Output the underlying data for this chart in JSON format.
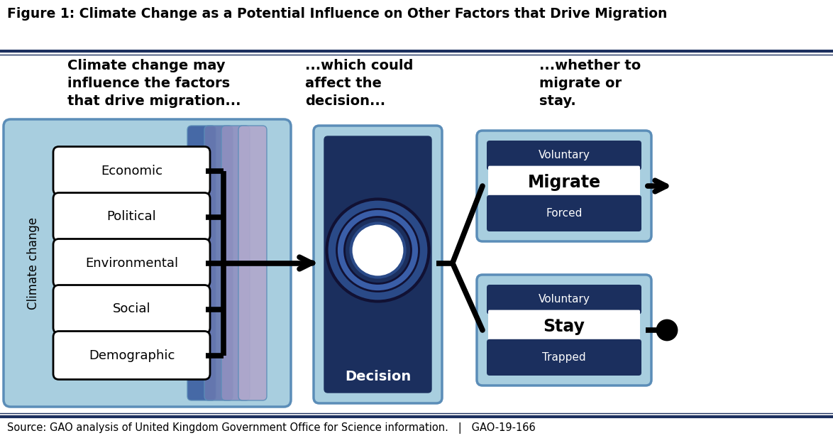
{
  "title": "Figure 1: Climate Change as a Potential Influence on Other Factors that Drive Migration",
  "source": "Source: GAO analysis of United Kingdom Government Office for Science information.   |   GAO-19-166",
  "col1_header": "Climate change may\ninfluence the factors\nthat drive migration...",
  "col2_header": "...which could\naffect the\ndecision...",
  "col3_header": "...whether to\nmigrate or\nstay.",
  "factors": [
    "Economic",
    "Political",
    "Environmental",
    "Social",
    "Demographic"
  ],
  "decision_label": "Decision",
  "migrate_label": "Migrate",
  "stay_label": "Stay",
  "voluntary_label": "Voluntary",
  "forced_label": "Forced",
  "trapped_label": "Trapped",
  "climate_change_label": "Climate change",
  "light_blue": "#A8CEDF",
  "medium_blue": "#5B8DB8",
  "dark_blue": "#1B2F5E",
  "tab_blue1": "#3C5EA0",
  "tab_blue2": "#6878B0",
  "tab_blue3": "#9090C0",
  "tab_blue4": "#B0A8CC",
  "white": "#FFFFFF",
  "black": "#000000",
  "bg_color": "#FFFFFF",
  "border_color": "#1B2F5E",
  "title_fontsize": 13.5,
  "header_fontsize": 14,
  "factor_fontsize": 13,
  "decision_fontsize": 14,
  "label_fontsize": 11,
  "source_fontsize": 10.5
}
